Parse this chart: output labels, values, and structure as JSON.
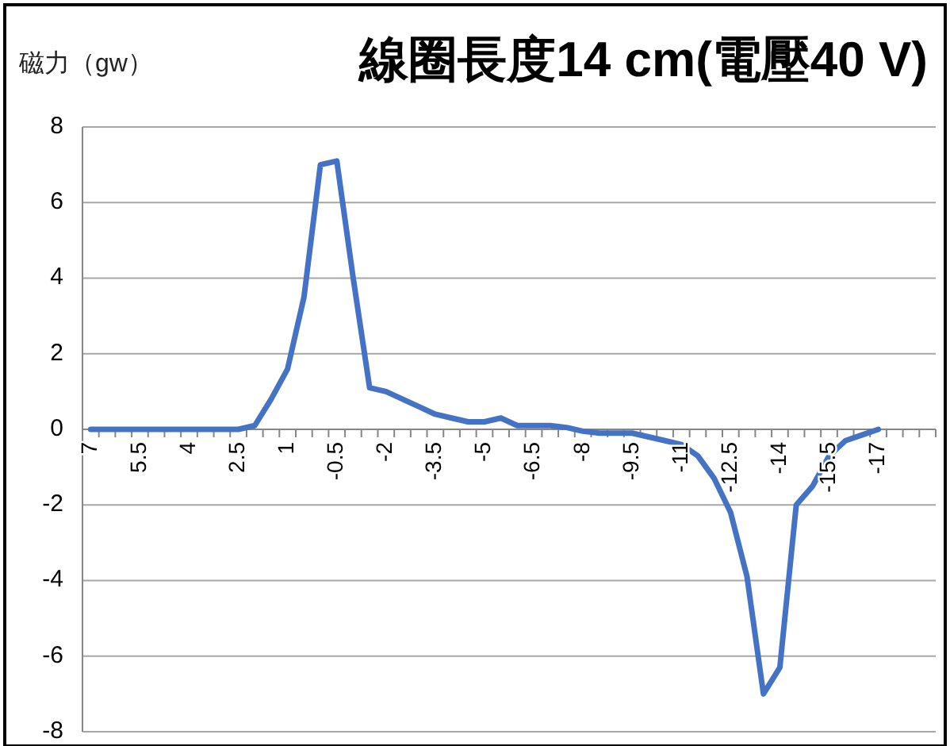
{
  "chart_data": {
    "type": "line",
    "title": "線圈長度14 cm(電壓40 V)",
    "ylabel": "磁力（gw）",
    "categories": [
      "7",
      null,
      null,
      "5.5",
      null,
      null,
      "4",
      null,
      null,
      "2.5",
      null,
      null,
      "1",
      null,
      null,
      "-0.5",
      null,
      null,
      "-2",
      null,
      null,
      "-3.5",
      null,
      null,
      "-5",
      null,
      null,
      "-6.5",
      null,
      null,
      "-8",
      null,
      null,
      "-9.5",
      null,
      null,
      "-11",
      null,
      null,
      "-12.5",
      null,
      null,
      "-14",
      null,
      null,
      "-15.5",
      null,
      null,
      "-17",
      null,
      null,
      null
    ],
    "series": [
      {
        "color": "#4472c4",
        "values": [
          0,
          0,
          0,
          0,
          0,
          0,
          0,
          0,
          0,
          0,
          0.1,
          0.8,
          1.6,
          3.5,
          7.0,
          7.1,
          4,
          1.1,
          1.0,
          0.8,
          0.6,
          0.4,
          0.3,
          0.2,
          0.2,
          0.3,
          0.1,
          0.1,
          0.1,
          0.05,
          -0.05,
          -0.1,
          -0.1,
          -0.1,
          -0.2,
          -0.3,
          -0.4,
          -0.7,
          -1.3,
          -2.2,
          -3.9,
          -7.0,
          -6.3,
          -2.0,
          -1.5,
          -0.7,
          -0.3,
          -0.15,
          0,
          null,
          null,
          null
        ]
      }
    ],
    "ylim": [
      -8,
      8
    ],
    "yticks": [
      8,
      6,
      4,
      2,
      0,
      -2,
      -4,
      -6,
      -8
    ],
    "grid": "y",
    "line_style": "solid",
    "marker": "none"
  }
}
